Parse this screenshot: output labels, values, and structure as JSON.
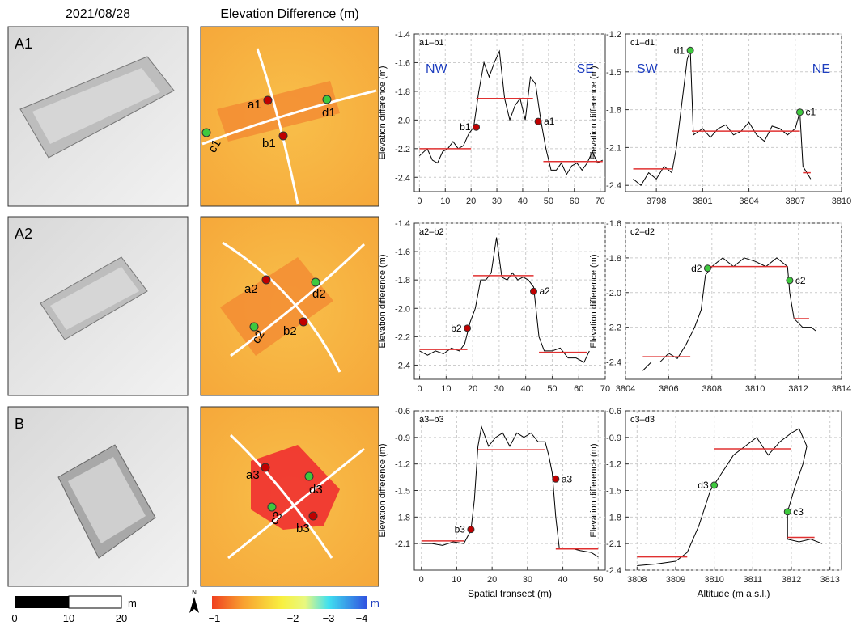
{
  "headers": [
    "2021/08/28",
    "Elevation Difference (m)"
  ],
  "panels": [
    "A1",
    "A2",
    "B"
  ],
  "maps": [
    {
      "points": [
        "a1",
        "b1",
        "c1",
        "d1"
      ]
    },
    {
      "points": [
        "a2",
        "b2",
        "c2",
        "d2"
      ]
    },
    {
      "points": [
        "a3",
        "b3",
        "c3",
        "d3"
      ]
    }
  ],
  "scale_bar": {
    "unit": "m",
    "labels": [
      "0",
      "10",
      "20"
    ]
  },
  "colorbar": {
    "north": "N",
    "unit": "m",
    "labels": [
      "−1",
      "−2",
      "−3",
      "−4"
    ]
  },
  "chart_data": [
    {
      "type": "line",
      "title": "a1–b1",
      "ylabel": "Elevation difference (m)",
      "color": "#000000",
      "fit_color": "#e03030",
      "annotation_color": "#1f3fbf",
      "annotations": [
        "NW",
        "SE"
      ],
      "xlim": [
        -2,
        72
      ],
      "xticks": [
        0,
        10,
        20,
        30,
        40,
        50,
        60,
        70
      ],
      "ylim": [
        -2.5,
        -1.4
      ],
      "yticks": [
        -2.4,
        -2.2,
        {
          "value": -2,
          "label": "-2.0"
        },
        -1.8,
        -1.6,
        -1.4
      ],
      "grid": true,
      "x": [
        0,
        3,
        5,
        7,
        9,
        11,
        13,
        15,
        17,
        19,
        21,
        23,
        25,
        27,
        29,
        31,
        33,
        35,
        37,
        39,
        41,
        43,
        45,
        47,
        49,
        51,
        53,
        55,
        57,
        59,
        61,
        63,
        65,
        67,
        69,
        71
      ],
      "values": [
        -2.25,
        -2.2,
        -2.28,
        -2.3,
        -2.22,
        -2.2,
        -2.15,
        -2.2,
        -2.18,
        -2.1,
        -2.05,
        -1.8,
        -1.6,
        -1.7,
        -1.6,
        -1.52,
        -1.85,
        -2.0,
        -1.9,
        -1.85,
        -2.0,
        -1.7,
        -1.75,
        -2.0,
        -2.2,
        -2.35,
        -2.35,
        -2.3,
        -2.38,
        -2.32,
        -2.3,
        -2.35,
        -2.3,
        -2.22,
        -2.3,
        -2.28
      ],
      "fits": [
        {
          "x": [
            0,
            20
          ],
          "y": -2.2
        },
        {
          "x": [
            22,
            44
          ],
          "y": -1.85
        },
        {
          "x": [
            48,
            71
          ],
          "y": -2.29
        }
      ],
      "points": [
        {
          "label": "b1",
          "x": 22,
          "y": -2.05,
          "color": "#c00000"
        },
        {
          "label": "a1",
          "x": 46,
          "y": -2.01,
          "color": "#c00000"
        }
      ]
    },
    {
      "type": "line",
      "title": "c1–d1",
      "ylabel": "Elevation difference (m)",
      "color": "#000000",
      "fit_color": "#e03030",
      "annotation_color": "#1f3fbf",
      "annotations": [
        "SW",
        "NE"
      ],
      "xlim": [
        3796,
        3810
      ],
      "xticks": [
        3798,
        3801,
        3804,
        3807,
        3810
      ],
      "ylim": [
        -2.45,
        -1.2
      ],
      "yticks": [
        -2.4,
        -2.1,
        -1.8,
        -1.5,
        -1.2
      ],
      "grid": true,
      "x": [
        3796.5,
        3797,
        3797.5,
        3798,
        3798.5,
        3799,
        3799.3,
        3799.6,
        3799.8,
        3800,
        3800.2,
        3800.4,
        3801,
        3801.5,
        3802,
        3802.5,
        3803,
        3803.5,
        3804,
        3804.5,
        3805,
        3805.5,
        3806,
        3806.5,
        3807,
        3807.3,
        3807.5,
        3808
      ],
      "values": [
        -2.35,
        -2.4,
        -2.3,
        -2.35,
        -2.25,
        -2.3,
        -2.1,
        -1.8,
        -1.6,
        -1.4,
        -1.33,
        -2.0,
        -1.95,
        -2.02,
        -1.95,
        -1.92,
        -2.0,
        -1.97,
        -1.9,
        -2.0,
        -2.05,
        -1.93,
        -1.95,
        -2.0,
        -1.95,
        -1.82,
        -2.25,
        -2.35
      ],
      "fits": [
        {
          "x": [
            3796.5,
            3799
          ],
          "y": -2.27
        },
        {
          "x": [
            3800.3,
            3807.3
          ],
          "y": -1.97
        },
        {
          "x": [
            3807.5,
            3808
          ],
          "y": -2.3
        }
      ],
      "points": [
        {
          "label": "d1",
          "x": 3800.2,
          "y": -1.33,
          "color": "#3ec93e"
        },
        {
          "label": "c1",
          "x": 3807.3,
          "y": -1.82,
          "color": "#3ec93e"
        }
      ]
    },
    {
      "type": "line",
      "title": "a2–b2",
      "ylabel": "Elevation difference (m)",
      "color": "#000000",
      "fit_color": "#e03030",
      "xlim": [
        -2,
        70
      ],
      "xticks": [
        0,
        10,
        20,
        30,
        40,
        50,
        60,
        70
      ],
      "ylim": [
        -2.5,
        -1.4
      ],
      "yticks": [
        -2.4,
        -2.2,
        {
          "value": -2,
          "label": "-2.0"
        },
        -1.8,
        -1.6,
        -1.4
      ],
      "grid": true,
      "x": [
        0,
        3,
        6,
        9,
        12,
        15,
        17,
        19,
        21,
        23,
        25,
        27,
        29,
        31,
        33,
        35,
        37,
        39,
        41,
        43,
        45,
        47,
        50,
        53,
        56,
        59,
        62,
        64
      ],
      "values": [
        -2.3,
        -2.33,
        -2.3,
        -2.32,
        -2.28,
        -2.3,
        -2.25,
        -2.1,
        -2.0,
        -1.8,
        -1.8,
        -1.75,
        -1.5,
        -1.78,
        -1.8,
        -1.75,
        -1.8,
        -1.78,
        -1.8,
        -1.85,
        -2.2,
        -2.3,
        -2.3,
        -2.28,
        -2.35,
        -2.35,
        -2.38,
        -2.3
      ],
      "fits": [
        {
          "x": [
            0,
            18
          ],
          "y": -2.29
        },
        {
          "x": [
            20,
            43
          ],
          "y": -1.77
        },
        {
          "x": [
            45,
            63
          ],
          "y": -2.31
        }
      ],
      "points": [
        {
          "label": "b2",
          "x": 18,
          "y": -2.14,
          "color": "#c00000"
        },
        {
          "label": "a2",
          "x": 43,
          "y": -1.88,
          "color": "#c00000"
        }
      ]
    },
    {
      "type": "line",
      "title": "c2–d2",
      "ylabel": "Elevation difference (m)",
      "color": "#000000",
      "fit_color": "#e03030",
      "xlim": [
        3804,
        3814
      ],
      "xticks": [
        3804,
        3806,
        3808,
        3810,
        3812,
        3814
      ],
      "ylim": [
        -2.5,
        -1.6
      ],
      "yticks": [
        -2.4,
        -2.2,
        {
          "value": -2,
          "label": "-2.0"
        },
        -1.8,
        -1.6
      ],
      "grid": true,
      "x": [
        3804.8,
        3805.2,
        3805.6,
        3806,
        3806.4,
        3806.8,
        3807.2,
        3807.5,
        3807.7,
        3808,
        3808.5,
        3809,
        3809.5,
        3810,
        3810.5,
        3811,
        3811.5,
        3811.6,
        3811.8,
        3812.2,
        3812.6,
        3812.8
      ],
      "values": [
        -2.45,
        -2.4,
        -2.4,
        -2.35,
        -2.38,
        -2.3,
        -2.2,
        -2.1,
        -1.9,
        -1.85,
        -1.8,
        -1.85,
        -1.8,
        -1.82,
        -1.85,
        -1.8,
        -1.85,
        -2.0,
        -2.15,
        -2.2,
        -2.2,
        -2.22
      ],
      "fits": [
        {
          "x": [
            3804.8,
            3807
          ],
          "y": -2.37
        },
        {
          "x": [
            3807.8,
            3811.5
          ],
          "y": -1.85
        },
        {
          "x": [
            3811.8,
            3812.5
          ],
          "y": -2.15
        }
      ],
      "points": [
        {
          "label": "d2",
          "x": 3807.8,
          "y": -1.86,
          "color": "#3ec93e"
        },
        {
          "label": "c2",
          "x": 3811.6,
          "y": -1.93,
          "color": "#3ec93e"
        }
      ]
    },
    {
      "type": "line",
      "title": "a3–b3",
      "ylabel": "Elevation difference (m)",
      "xlabel": "Spatial transect (m)",
      "color": "#000000",
      "fit_color": "#e03030",
      "xlim": [
        -2,
        52
      ],
      "xticks": [
        0,
        10,
        20,
        30,
        40,
        50
      ],
      "ylim": [
        -2.4,
        -0.6
      ],
      "yticks": [
        -2.1,
        -1.8,
        -1.5,
        -1.2,
        -0.9,
        -0.6
      ],
      "grid": true,
      "x": [
        0,
        3,
        6,
        9,
        12,
        14,
        15,
        16,
        17,
        19,
        21,
        23,
        25,
        27,
        29,
        31,
        33,
        35,
        36,
        37,
        38,
        39,
        42,
        45,
        48,
        50
      ],
      "values": [
        -2.1,
        -2.1,
        -2.12,
        -2.08,
        -2.1,
        -1.95,
        -1.6,
        -1.0,
        -0.78,
        -1.0,
        -0.9,
        -0.85,
        -1.0,
        -0.85,
        -0.9,
        -0.85,
        -0.95,
        -0.95,
        -1.1,
        -1.3,
        -1.8,
        -2.15,
        -2.15,
        -2.18,
        -2.2,
        -2.25
      ],
      "fits": [
        {
          "x": [
            0,
            12
          ],
          "y": -2.07
        },
        {
          "x": [
            16,
            35
          ],
          "y": -1.04
        },
        {
          "x": [
            38,
            50
          ],
          "y": -2.16
        }
      ],
      "points": [
        {
          "label": "b3",
          "x": 14,
          "y": -1.94,
          "color": "#c00000"
        },
        {
          "label": "a3",
          "x": 38,
          "y": -1.37,
          "color": "#c00000"
        }
      ]
    },
    {
      "type": "line",
      "title": "c3–d3",
      "ylabel": "Elevation difference (m)",
      "xlabel": "Altitude (m a.s.l.)",
      "color": "#000000",
      "fit_color": "#e03030",
      "xlim": [
        3807.7,
        3813.3
      ],
      "xticks": [
        3808,
        3809,
        3810,
        3811,
        3812,
        3813
      ],
      "ylim": [
        -2.4,
        -0.6
      ],
      "yticks": [
        -2.4,
        -2.1,
        -1.8,
        -1.5,
        -1.2,
        -0.9,
        -0.6
      ],
      "grid": true,
      "x": [
        3808,
        3808.5,
        3809,
        3809.3,
        3809.6,
        3809.9,
        3810.2,
        3810.5,
        3810.8,
        3811.1,
        3811.4,
        3811.7,
        3812,
        3812.2,
        3812.4,
        3812.3,
        3812.1,
        3811.9,
        3811.9,
        3812.2,
        3812.5,
        3812.8
      ],
      "values": [
        -2.35,
        -2.33,
        -2.3,
        -2.2,
        -1.9,
        -1.5,
        -1.3,
        -1.1,
        -1.0,
        -0.9,
        -1.1,
        -0.95,
        -0.85,
        -0.8,
        -1.0,
        -1.2,
        -1.45,
        -1.74,
        -2.05,
        -2.08,
        -2.05,
        -2.1
      ],
      "fits": [
        {
          "x": [
            3808,
            3809.3
          ],
          "y": -2.25
        },
        {
          "x": [
            3810,
            3812
          ],
          "y": -1.03
        },
        {
          "x": [
            3811.9,
            3812.6
          ],
          "y": -2.03
        }
      ],
      "points": [
        {
          "label": "d3",
          "x": 3810,
          "y": -1.44,
          "color": "#3ec93e"
        },
        {
          "label": "c3",
          "x": 3811.9,
          "y": -1.74,
          "color": "#3ec93e"
        }
      ]
    }
  ]
}
